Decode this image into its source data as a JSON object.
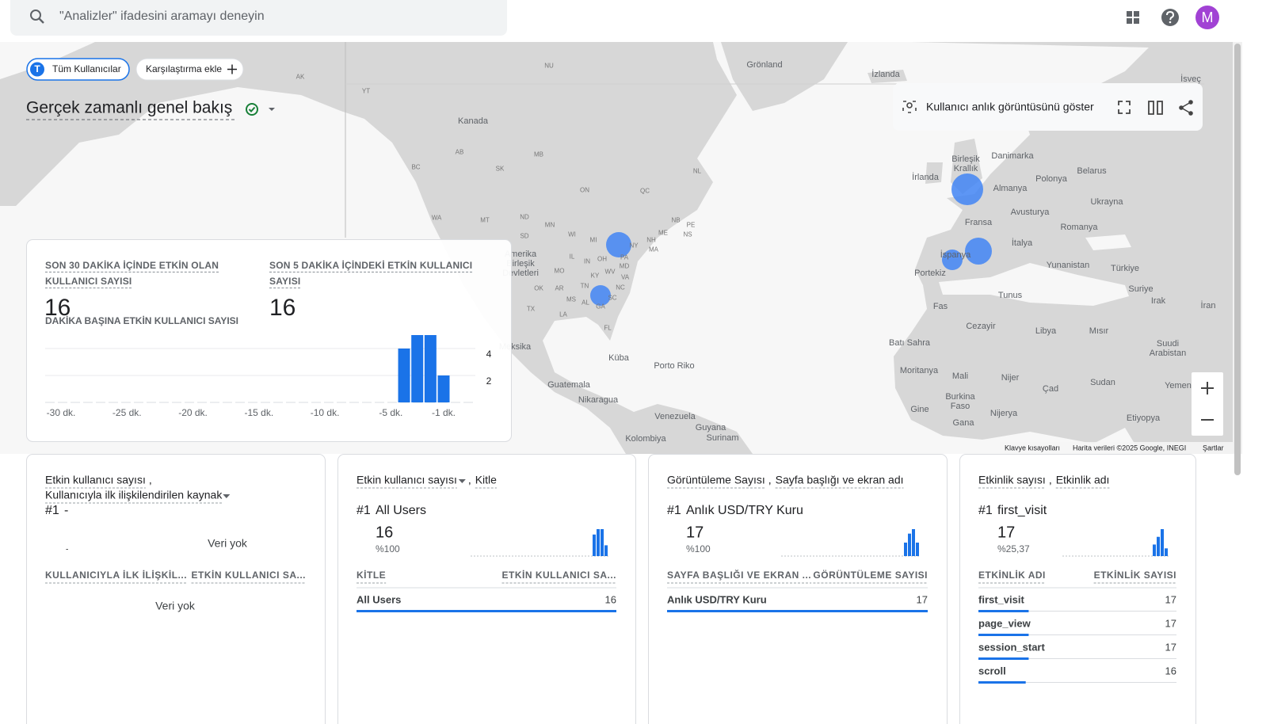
{
  "header": {
    "search_placeholder": "\"Analizler\" ifadesini aramayı deneyin",
    "avatar": "M"
  },
  "chips": {
    "segment_letter": "T",
    "segment": "Tüm Kullanıcılar",
    "compare": "Karşılaştırma ekle"
  },
  "title": "Gerçek zamanlı genel bakış",
  "toolbar": {
    "snapshot": "Kullanıcı anlık görüntüsünü göster"
  },
  "map": {
    "labels": [
      "Grönland",
      "İzlanda",
      "İsveç",
      "Kanada",
      "Birleşik Krallık",
      "Danimarka",
      "İrlanda",
      "Almanya",
      "Polonya",
      "Belarus",
      "Ukrayna",
      "Avusturya",
      "Fransa",
      "Romanya",
      "İtalya",
      "İspanya",
      "Portekiz",
      "Yunanistan",
      "Türkiye",
      "Suriye",
      "Irak",
      "İran",
      "Tunus",
      "Fas",
      "Cezayir",
      "Libya",
      "Mısır",
      "Batı Sahra",
      "Suudi Arabistan",
      "Yemen",
      "Moritanya",
      "Mali",
      "Nijer",
      "Çad",
      "Sudan",
      "Burkina Faso",
      "Nijerya",
      "Gine",
      "Gana",
      "Etiyopya",
      "Amerika Birleşik Devletleri",
      "Meksika",
      "Küba",
      "Porto Riko",
      "Guatemala",
      "Nikaragua",
      "Venezuela",
      "Guyana",
      "Surinam",
      "Kolombiya"
    ],
    "region_codes": [
      "NU",
      "AK",
      "YT",
      "AB",
      "MB",
      "SK",
      "BC",
      "ON",
      "QC",
      "NL",
      "WA",
      "MT",
      "ND",
      "MN",
      "WI",
      "MI",
      "NY",
      "SD",
      "ME",
      "NH",
      "MA",
      "NB",
      "NS",
      "PE",
      "IL",
      "IN",
      "OH",
      "PA",
      "MD",
      "KY",
      "VA",
      "WV",
      "NC",
      "TN",
      "SC",
      "AL",
      "GA",
      "MS",
      "OK",
      "AR",
      "TX",
      "LA",
      "MO",
      "FL"
    ],
    "footer": [
      "Klavye kısayolları",
      "Harita verileri ©2025 Google, INEGI",
      "Şartlar"
    ]
  },
  "overview": {
    "metric_30": {
      "label": "SON 30 DAKİKA İÇİNDE ETKİN OLAN KULLANICI SAYISI",
      "value": 16
    },
    "metric_5": {
      "label": "SON 5 DAKİKA İÇİNDEKİ ETKİN KULLANICI SAYISI",
      "value": 16
    }
  },
  "chart_data": {
    "type": "bar",
    "title": "DAKİKA BAŞINA ETKİN KULLANICI SAYISI",
    "categories": [
      "-30 dk.",
      null,
      null,
      null,
      null,
      "-25 dk.",
      null,
      null,
      null,
      null,
      "-20 dk.",
      null,
      null,
      null,
      null,
      "-15 dk.",
      null,
      null,
      null,
      null,
      "-10 dk.",
      null,
      null,
      null,
      null,
      "-5 dk.",
      null,
      null,
      null,
      "-1 dk."
    ],
    "values": [
      0,
      0,
      0,
      0,
      0,
      0,
      0,
      0,
      0,
      0,
      0,
      0,
      0,
      0,
      0,
      0,
      0,
      0,
      0,
      0,
      0,
      0,
      0,
      0,
      0,
      0,
      4,
      5,
      5,
      2
    ],
    "color": "#1a73e8",
    "ylim": [
      0,
      5
    ],
    "yticks": [
      2,
      4
    ],
    "grid": true
  },
  "cards": [
    {
      "metric": "Etkin kullanıcı sayısı",
      "separator": ",",
      "dimension": "Kullanıcıyla ilk ilişkilendirilen kaynak",
      "rank": "#1",
      "top_name": "-",
      "empty_chart": "Veri yok",
      "empty_axis": "-",
      "columns": [
        "KULLANICIYLA İLK İLİŞKİL...",
        "ETKİN KULLANICI SA..."
      ],
      "empty_table": "Veri yok"
    },
    {
      "metric": "Etkin kullanıcı sayısı",
      "separator": ",",
      "dimension": "Kitle",
      "rank": "#1",
      "top_name": "All Users",
      "top_value": 16,
      "top_share": "%100",
      "spark": [
        4,
        5,
        5,
        2
      ],
      "columns": [
        "KİTLE",
        "ETKİN KULLANICI SA..."
      ],
      "rows": [
        {
          "name": "All Users",
          "value": 16
        }
      ]
    },
    {
      "metric": "Görüntüleme Sayısı",
      "separator": ",",
      "dimension": "Sayfa başlığı ve ekran adı",
      "rank": "#1",
      "top_name": "Anlık USD/TRY Kuru",
      "top_value": 17,
      "top_share": "%100",
      "spark": [
        3,
        5,
        6,
        3
      ],
      "columns": [
        "SAYFA BAŞLIĞI VE EKRAN ...",
        "GÖRÜNTÜLEME SAYISI"
      ],
      "rows": [
        {
          "name": "Anlık USD/TRY Kuru",
          "value": 17
        }
      ]
    },
    {
      "metric": "Etkinlik sayısı",
      "separator": ",",
      "dimension": "Etkinlik adı",
      "rank": "#1",
      "top_name": "first_visit",
      "top_value": 17,
      "top_share": "%25,37",
      "spark": [
        3,
        5,
        7,
        2
      ],
      "columns": [
        "ETKİNLİK ADI",
        "ETKİNLİK SAYISI"
      ],
      "rows": [
        {
          "name": "first_visit",
          "value": 17
        },
        {
          "name": "page_view",
          "value": 17
        },
        {
          "name": "session_start",
          "value": 17
        },
        {
          "name": "scroll",
          "value": 16
        }
      ]
    }
  ]
}
